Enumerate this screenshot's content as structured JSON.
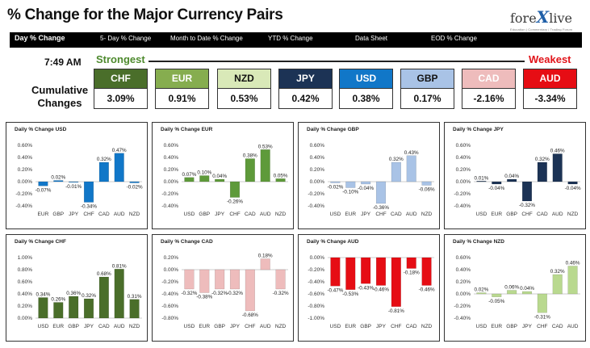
{
  "header": {
    "title": "% Change for the Major Currency Pairs",
    "logo_main": "fore",
    "logo_x": "X",
    "logo_end": "live",
    "logo_tagline": "Education | Commentary | Trading Forum"
  },
  "tabs": [
    {
      "label": "Day % Change",
      "active": true
    },
    {
      "label": "5- Day % Change",
      "active": false
    },
    {
      "label": "Month to Date % Change",
      "active": false
    },
    {
      "label": "YTD % Change",
      "active": false
    },
    {
      "label": "Data Sheet",
      "active": false
    },
    {
      "label": "EOD % Change",
      "active": false
    }
  ],
  "ranking": {
    "time": "7:49 AM",
    "strongest_label": "Strongest",
    "weakest_label": "Weakest",
    "cumulative_label_1": "Cumulative",
    "cumulative_label_2": "Changes",
    "pairs": [
      {
        "name": "CHF",
        "value": "3.09%",
        "bg": "#4a6e2a",
        "fg": "#ffffff"
      },
      {
        "name": "EUR",
        "value": "0.91%",
        "bg": "#86ad4f",
        "fg": "#ffffff"
      },
      {
        "name": "NZD",
        "value": "0.53%",
        "bg": "#d9e9b8",
        "fg": "#111111"
      },
      {
        "name": "JPY",
        "value": "0.42%",
        "bg": "#1c3355",
        "fg": "#ffffff"
      },
      {
        "name": "USD",
        "value": "0.38%",
        "bg": "#1177c8",
        "fg": "#ffffff"
      },
      {
        "name": "GBP",
        "value": "0.17%",
        "bg": "#a9c3e6",
        "fg": "#111111"
      },
      {
        "name": "CAD",
        "value": "-2.16%",
        "bg": "#eebcbc",
        "fg": "#ffffff"
      },
      {
        "name": "AUD",
        "value": "-3.34%",
        "bg": "#e60d14",
        "fg": "#ffffff"
      }
    ]
  },
  "chart_data": [
    {
      "type": "bar",
      "title": "Daily % Change USD",
      "categories": [
        "EUR",
        "GBP",
        "JPY",
        "CHF",
        "CAD",
        "AUD",
        "NZD"
      ],
      "values": [
        -0.07,
        0.02,
        -0.01,
        -0.34,
        0.32,
        0.47,
        -0.02
      ],
      "labels": [
        "-0.07%",
        "0.02%",
        "-0.01%",
        "-0.34%",
        "0.32%",
        "0.47%",
        "-0.02%"
      ],
      "ylim": [
        -0.4,
        0.6
      ],
      "ticks": [
        "0.60%",
        "0.40%",
        "0.20%",
        "0.00%",
        "-0.20%",
        "-0.40%"
      ],
      "tick_values": [
        0.6,
        0.4,
        0.2,
        0,
        -0.2,
        -0.4
      ],
      "color": "#1177c8"
    },
    {
      "type": "bar",
      "title": "Daily % Change EUR",
      "categories": [
        "USD",
        "GBP",
        "JPY",
        "CHF",
        "CAD",
        "AUD",
        "NZD"
      ],
      "values": [
        0.07,
        0.1,
        0.04,
        -0.26,
        0.38,
        0.53,
        0.05
      ],
      "labels": [
        "0.07%",
        "0.10%",
        "0.04%",
        "-0.26%",
        "0.38%",
        "0.53%",
        "0.05%"
      ],
      "ylim": [
        -0.4,
        0.6
      ],
      "ticks": [
        "0.60%",
        "0.40%",
        "0.20%",
        "0.00%",
        "-0.20%",
        "-0.40%"
      ],
      "tick_values": [
        0.6,
        0.4,
        0.2,
        0,
        -0.2,
        -0.4
      ],
      "color": "#5e9a3a"
    },
    {
      "type": "bar",
      "title": "Daily % Change GBP",
      "categories": [
        "USD",
        "EUR",
        "JPY",
        "CHF",
        "CAD",
        "AUD",
        "NZD"
      ],
      "values": [
        -0.02,
        -0.1,
        -0.04,
        -0.36,
        0.32,
        0.43,
        -0.06
      ],
      "labels": [
        "-0.02%",
        "-0.10%",
        "-0.04%",
        "-0.36%",
        "0.32%",
        "0.43%",
        "-0.06%"
      ],
      "ylim": [
        -0.4,
        0.6
      ],
      "ticks": [
        "0.60%",
        "0.40%",
        "0.20%",
        "0.00%",
        "-0.20%",
        "-0.40%"
      ],
      "tick_values": [
        0.6,
        0.4,
        0.2,
        0,
        -0.2,
        -0.4
      ],
      "color": "#a9c3e6"
    },
    {
      "type": "bar",
      "title": "Daily % Change JPY",
      "categories": [
        "USD",
        "EUR",
        "GBP",
        "CHF",
        "CAD",
        "AUD",
        "NZD"
      ],
      "values": [
        0.01,
        -0.04,
        0.04,
        -0.32,
        0.32,
        0.46,
        -0.04
      ],
      "labels": [
        "0.01%",
        "-0.04%",
        "0.04%",
        "-0.32%",
        "0.32%",
        "0.46%",
        "-0.04%"
      ],
      "ylim": [
        -0.4,
        0.6
      ],
      "ticks": [
        "0.60%",
        "0.40%",
        "0.20%",
        "0.00%",
        "-0.20%",
        "-0.40%"
      ],
      "tick_values": [
        0.6,
        0.4,
        0.2,
        0,
        -0.2,
        -0.4
      ],
      "color": "#1c3355"
    },
    {
      "type": "bar",
      "title": "Daily % Change CHF",
      "categories": [
        "USD",
        "EUR",
        "GBP",
        "JPY",
        "CAD",
        "AUD",
        "NZD"
      ],
      "values": [
        0.34,
        0.26,
        0.36,
        0.32,
        0.68,
        0.81,
        0.31
      ],
      "labels": [
        "0.34%",
        "0.26%",
        "0.36%",
        "0.32%",
        "0.68%",
        "0.81%",
        "0.31%"
      ],
      "ylim": [
        0,
        1.0
      ],
      "ticks": [
        "1.00%",
        "0.80%",
        "0.60%",
        "0.40%",
        "0.20%",
        "0.00%"
      ],
      "tick_values": [
        1.0,
        0.8,
        0.6,
        0.4,
        0.2,
        0
      ],
      "color": "#4a6e2a"
    },
    {
      "type": "bar",
      "title": "Daily % Change CAD",
      "categories": [
        "USD",
        "EUR",
        "GBP",
        "JPY",
        "CHF",
        "AUD",
        "NZD"
      ],
      "values": [
        -0.32,
        -0.38,
        -0.32,
        -0.32,
        -0.68,
        0.18,
        -0.32
      ],
      "labels": [
        "-0.32%",
        "-0.38%",
        "-0.32%",
        "-0.32%",
        "-0.68%",
        "0.18%",
        "-0.32%"
      ],
      "ylim": [
        -0.8,
        0.2
      ],
      "ticks": [
        "0.20%",
        "0.00%",
        "-0.20%",
        "-0.40%",
        "-0.60%",
        "-0.80%"
      ],
      "tick_values": [
        0.2,
        0,
        -0.2,
        -0.4,
        -0.6,
        -0.8
      ],
      "color": "#eebcbc"
    },
    {
      "type": "bar",
      "title": "Daily % Change AUD",
      "categories": [
        "USD",
        "EUR",
        "GBP",
        "JPY",
        "CHF",
        "CAD",
        "NZD"
      ],
      "values": [
        -0.47,
        -0.53,
        -0.43,
        -0.46,
        -0.81,
        -0.18,
        -0.46
      ],
      "labels": [
        "-0.47%",
        "-0.53%",
        "-0.43%",
        "-0.46%",
        "-0.81%",
        "-0.18%",
        "-0.46%"
      ],
      "ylim": [
        -1.0,
        0
      ],
      "ticks": [
        "0.00%",
        "-0.20%",
        "-0.40%",
        "-0.60%",
        "-0.80%",
        "-1.00%"
      ],
      "tick_values": [
        0,
        -0.2,
        -0.4,
        -0.6,
        -0.8,
        -1.0
      ],
      "color": "#e60d14"
    },
    {
      "type": "bar",
      "title": "Daily % Change NZD",
      "categories": [
        "USD",
        "EUR",
        "GBP",
        "JPY",
        "CHF",
        "CAD",
        "AUD"
      ],
      "values": [
        0.02,
        -0.05,
        0.06,
        0.04,
        -0.31,
        0.32,
        0.46
      ],
      "labels": [
        "0.02%",
        "-0.05%",
        "0.06%",
        "0.04%",
        "-0.31%",
        "0.32%",
        "0.46%"
      ],
      "ylim": [
        -0.4,
        0.6
      ],
      "ticks": [
        "0.60%",
        "0.40%",
        "0.20%",
        "0.00%",
        "-0.20%",
        "-0.40%"
      ],
      "tick_values": [
        0.6,
        0.4,
        0.2,
        0,
        -0.2,
        -0.4
      ],
      "color": "#b9d98f"
    }
  ]
}
